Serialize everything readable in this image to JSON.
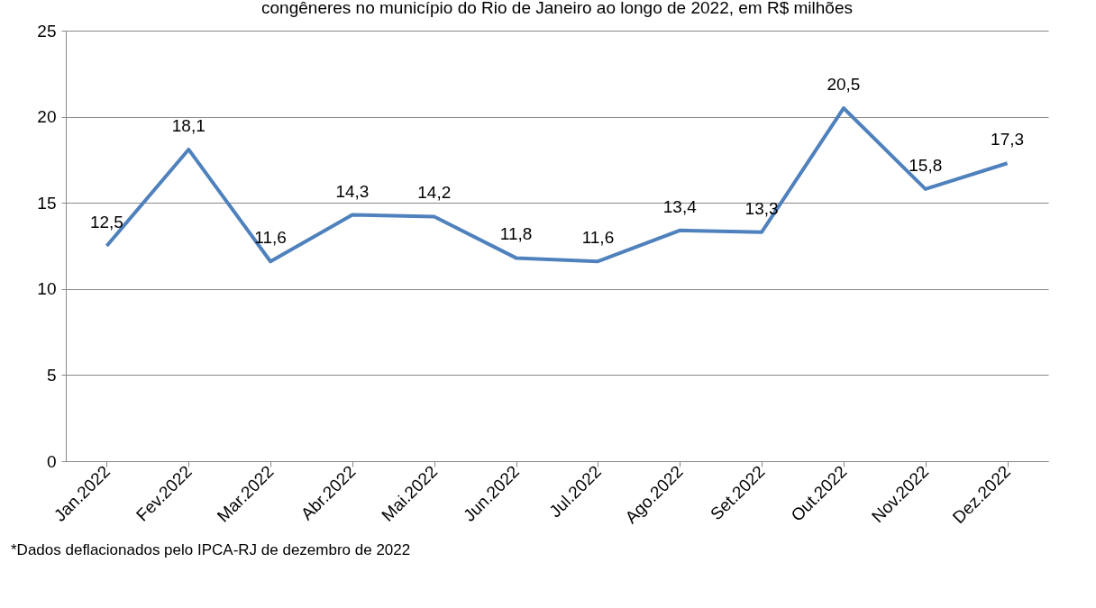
{
  "chart_data": {
    "type": "line",
    "title": "congêneres no município do Rio de Janeiro ao longo de 2022, em R$ milhões",
    "categories": [
      "Jan.2022",
      "Fev.2022",
      "Mar.2022",
      "Abr.2022",
      "Mai.2022",
      "Jun.2022",
      "Jul.2022",
      "Ago.2022",
      "Set.2022",
      "Out.2022",
      "Nov.2022",
      "Dez.2022"
    ],
    "series": [
      {
        "color": "#4f81bd",
        "values": [
          12.5,
          18.1,
          11.6,
          14.3,
          14.2,
          11.8,
          11.6,
          13.4,
          13.3,
          20.5,
          15.8,
          17.3
        ],
        "value_labels": [
          "12,5",
          "18,1",
          "11,6",
          "14,3",
          "14,2",
          "11,8",
          "11,6",
          "13,4",
          "13,3",
          "20,5",
          "15,8",
          "17,3"
        ]
      }
    ],
    "ylim": [
      0,
      25
    ],
    "yticks": [
      0,
      5,
      10,
      15,
      20,
      25
    ],
    "grid": "y",
    "marker": "none",
    "line_style": "solid",
    "annotations": [
      "*Dados deflacionados pelo IPCA-RJ de dezembro de 2022"
    ]
  }
}
